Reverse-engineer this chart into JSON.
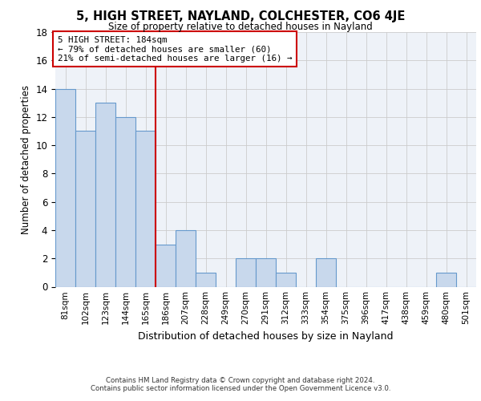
{
  "title": "5, HIGH STREET, NAYLAND, COLCHESTER, CO6 4JE",
  "subtitle": "Size of property relative to detached houses in Nayland",
  "xlabel": "Distribution of detached houses by size in Nayland",
  "ylabel": "Number of detached properties",
  "categories": [
    "81sqm",
    "102sqm",
    "123sqm",
    "144sqm",
    "165sqm",
    "186sqm",
    "207sqm",
    "228sqm",
    "249sqm",
    "270sqm",
    "291sqm",
    "312sqm",
    "333sqm",
    "354sqm",
    "375sqm",
    "396sqm",
    "417sqm",
    "438sqm",
    "459sqm",
    "480sqm",
    "501sqm"
  ],
  "values": [
    14,
    11,
    13,
    12,
    11,
    3,
    4,
    1,
    0,
    2,
    2,
    1,
    0,
    2,
    0,
    0,
    0,
    0,
    0,
    1,
    0
  ],
  "bar_color": "#c8d8ec",
  "bar_edge_color": "#6699cc",
  "vline_x": 4.5,
  "vline_color": "#cc0000",
  "annotation_box_text": "5 HIGH STREET: 184sqm\n← 79% of detached houses are smaller (60)\n21% of semi-detached houses are larger (16) →",
  "annotation_box_color": "#cc0000",
  "ylim": [
    0,
    18
  ],
  "yticks": [
    0,
    2,
    4,
    6,
    8,
    10,
    12,
    14,
    16,
    18
  ],
  "grid_color": "#cccccc",
  "background_color": "#eef2f8",
  "footer_line1": "Contains HM Land Registry data © Crown copyright and database right 2024.",
  "footer_line2": "Contains public sector information licensed under the Open Government Licence v3.0."
}
